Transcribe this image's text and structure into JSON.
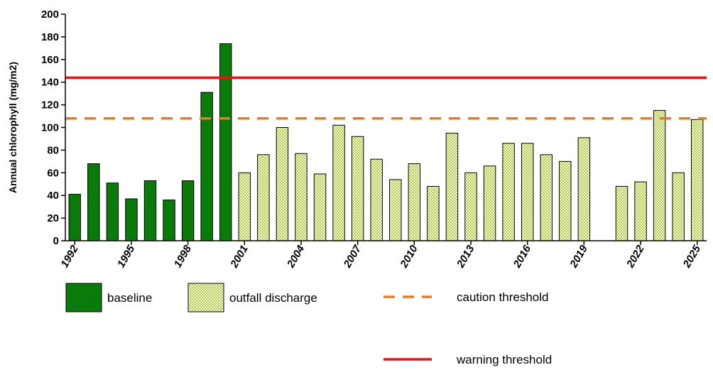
{
  "chart_data": {
    "type": "bar",
    "ylabel": "Annual chlorophyll (mg/m2)",
    "xlabel": "",
    "ylim": [
      0,
      200
    ],
    "yticks": [
      0,
      20,
      40,
      60,
      80,
      100,
      120,
      140,
      160,
      180,
      200
    ],
    "xlim": [
      1992,
      2025
    ],
    "xticks": [
      1992,
      1995,
      1998,
      2001,
      2004,
      2007,
      2010,
      2013,
      2016,
      2019,
      2022,
      2025
    ],
    "grid": false,
    "series": [
      {
        "name": "baseline",
        "color": "#0a7a0a",
        "pattern": "solid",
        "x": [
          1992,
          1993,
          1994,
          1995,
          1996,
          1997,
          1998,
          1999,
          2000
        ],
        "values": [
          41,
          68,
          51,
          37,
          53,
          36,
          53,
          131,
          174
        ]
      },
      {
        "name": "outfall discharge",
        "color": "#a6d52a",
        "pattern": "checkered",
        "x": [
          2001,
          2002,
          2003,
          2004,
          2005,
          2006,
          2007,
          2008,
          2009,
          2010,
          2011,
          2012,
          2013,
          2014,
          2015,
          2016,
          2017,
          2018,
          2019,
          2021,
          2022,
          2023,
          2024,
          2025
        ],
        "values": [
          60,
          76,
          100,
          77,
          59,
          102,
          92,
          72,
          54,
          68,
          48,
          95,
          60,
          66,
          86,
          86,
          76,
          70,
          91,
          48,
          52,
          115,
          60,
          107
        ]
      }
    ],
    "reference_lines": [
      {
        "name": "caution threshold",
        "value": 108,
        "color": "#f07a1a",
        "style": "dashed"
      },
      {
        "name": "warning threshold",
        "value": 144,
        "color": "#ee1111",
        "style": "solid"
      }
    ],
    "legend": {
      "placement": "bottom",
      "entries": [
        {
          "label": "baseline",
          "kind": "solid-box"
        },
        {
          "label": "outfall discharge",
          "kind": "checkered-box"
        },
        {
          "label": "caution threshold",
          "kind": "dashed-line"
        },
        {
          "label": "warning threshold",
          "kind": "solid-line"
        }
      ]
    }
  }
}
